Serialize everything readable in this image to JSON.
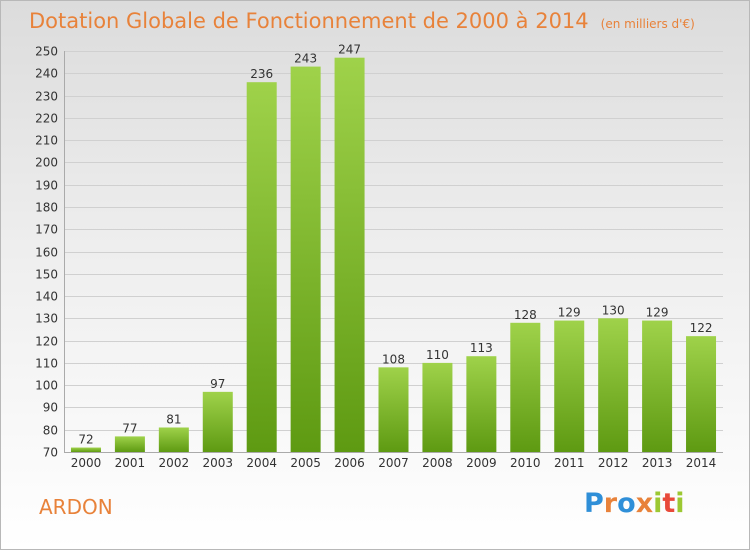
{
  "chart_data": {
    "type": "bar",
    "title": "Dotation Globale de Fonctionnement de 2000 à 2014",
    "subtitle": "(en milliers d'€)",
    "xlabel": "",
    "ylabel": "",
    "categories": [
      "2000",
      "2001",
      "2002",
      "2003",
      "2004",
      "2005",
      "2006",
      "2007",
      "2008",
      "2009",
      "2010",
      "2011",
      "2012",
      "2013",
      "2014"
    ],
    "values": [
      72,
      77,
      81,
      97,
      236,
      243,
      247,
      108,
      110,
      113,
      128,
      129,
      130,
      129,
      122
    ],
    "ylim": [
      70,
      250
    ],
    "yticks": [
      70,
      80,
      90,
      100,
      110,
      120,
      130,
      140,
      150,
      160,
      170,
      180,
      190,
      200,
      210,
      220,
      230,
      240,
      250
    ],
    "grid": true,
    "colors": {
      "bar_top": "#9fd24a",
      "bar_bottom": "#5e9a12",
      "title": "#e8823a"
    }
  },
  "footer": {
    "commune": "ARDON",
    "logo": "Proxiti",
    "logo_colors": [
      "#2f8fd8",
      "#e8823a",
      "#2f8fd8",
      "#e8823a",
      "#9cc832",
      "#e84a3a",
      "#9cc832"
    ]
  }
}
